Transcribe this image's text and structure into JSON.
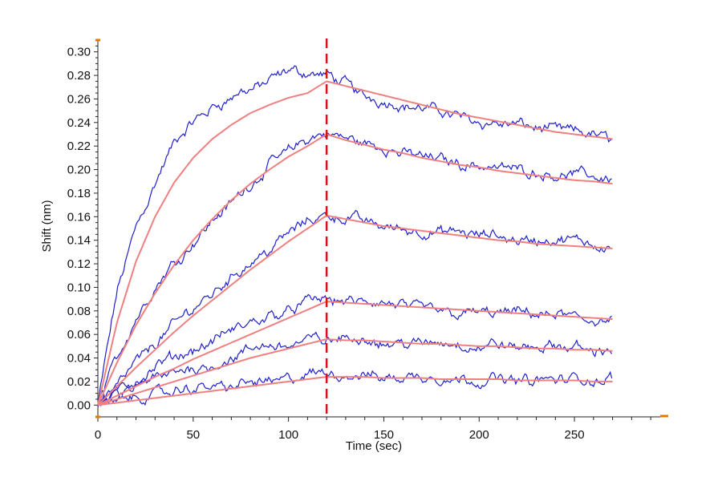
{
  "chart_data": {
    "type": "line",
    "xlabel": "Time (sec)",
    "ylabel": "Shift (nm)",
    "xlim": [
      0,
      295
    ],
    "ylim": [
      -0.01,
      0.31
    ],
    "x_ticks": [
      0,
      50,
      100,
      150,
      200,
      250
    ],
    "y_ticks": [
      0.0,
      0.02,
      0.04,
      0.06,
      0.08,
      0.1,
      0.12,
      0.14,
      0.16,
      0.18,
      0.2,
      0.22,
      0.24,
      0.26,
      0.28,
      0.3
    ],
    "grid": false,
    "legend": "none",
    "annotations": [
      {
        "type": "vertical-dashed-line",
        "x": 120,
        "color": "#dd1111"
      }
    ],
    "colors": {
      "measured": "#1f1fcf",
      "fit": "#f08080",
      "marker": "#dd1111",
      "axis-end-marks": "#e07b00"
    },
    "series": [
      {
        "x": [
          0,
          10,
          20,
          30,
          40,
          50,
          60,
          70,
          80,
          90,
          100,
          110,
          120,
          130,
          140,
          150,
          160,
          170,
          180,
          190,
          200,
          210,
          220,
          230,
          240,
          250,
          260,
          270
        ],
        "measured": [
          0.0,
          0.095,
          0.152,
          0.19,
          0.222,
          0.238,
          0.252,
          0.262,
          0.268,
          0.275,
          0.281,
          0.282,
          0.28,
          0.272,
          0.262,
          0.26,
          0.256,
          0.252,
          0.249,
          0.246,
          0.243,
          0.24,
          0.238,
          0.236,
          0.233,
          0.231,
          0.229,
          0.226
        ],
        "fit": [
          0.0,
          0.07,
          0.122,
          0.16,
          0.189,
          0.21,
          0.226,
          0.238,
          0.248,
          0.255,
          0.261,
          0.265,
          0.275,
          0.271,
          0.267,
          0.263,
          0.259,
          0.255,
          0.251,
          0.247,
          0.244,
          0.241,
          0.238,
          0.235,
          0.232,
          0.23,
          0.228,
          0.226
        ]
      },
      {
        "x": [
          0,
          10,
          20,
          30,
          40,
          50,
          60,
          70,
          80,
          90,
          100,
          110,
          120,
          130,
          140,
          150,
          160,
          170,
          180,
          190,
          200,
          210,
          220,
          230,
          240,
          250,
          260,
          270
        ],
        "measured": [
          0.0,
          0.04,
          0.075,
          0.1,
          0.122,
          0.14,
          0.158,
          0.172,
          0.188,
          0.204,
          0.216,
          0.225,
          0.23,
          0.226,
          0.222,
          0.218,
          0.214,
          0.212,
          0.209,
          0.206,
          0.204,
          0.203,
          0.201,
          0.199,
          0.197,
          0.196,
          0.194,
          0.193
        ],
        "fit": [
          0.0,
          0.036,
          0.068,
          0.095,
          0.119,
          0.14,
          0.158,
          0.174,
          0.188,
          0.2,
          0.211,
          0.22,
          0.23,
          0.225,
          0.221,
          0.217,
          0.214,
          0.21,
          0.207,
          0.204,
          0.202,
          0.199,
          0.197,
          0.195,
          0.193,
          0.191,
          0.19,
          0.188
        ]
      },
      {
        "x": [
          0,
          10,
          20,
          30,
          40,
          50,
          60,
          70,
          80,
          90,
          100,
          110,
          120,
          130,
          140,
          150,
          160,
          170,
          180,
          190,
          200,
          210,
          220,
          230,
          240,
          250,
          260,
          270
        ],
        "measured": [
          0.0,
          0.018,
          0.036,
          0.052,
          0.068,
          0.082,
          0.096,
          0.11,
          0.122,
          0.134,
          0.146,
          0.156,
          0.162,
          0.16,
          0.156,
          0.152,
          0.15,
          0.148,
          0.146,
          0.145,
          0.143,
          0.142,
          0.141,
          0.14,
          0.139,
          0.138,
          0.137,
          0.138
        ],
        "fit": [
          0.0,
          0.016,
          0.032,
          0.047,
          0.062,
          0.076,
          0.089,
          0.102,
          0.115,
          0.127,
          0.139,
          0.15,
          0.161,
          0.158,
          0.155,
          0.152,
          0.15,
          0.148,
          0.146,
          0.144,
          0.142,
          0.14,
          0.139,
          0.137,
          0.136,
          0.135,
          0.134,
          0.133
        ]
      },
      {
        "x": [
          0,
          10,
          20,
          30,
          40,
          50,
          60,
          70,
          80,
          90,
          100,
          110,
          120,
          130,
          140,
          150,
          160,
          170,
          180,
          190,
          200,
          210,
          220,
          230,
          240,
          250,
          260,
          270
        ],
        "measured": [
          0.0,
          0.01,
          0.02,
          0.03,
          0.038,
          0.046,
          0.054,
          0.062,
          0.068,
          0.076,
          0.082,
          0.088,
          0.09,
          0.088,
          0.086,
          0.084,
          0.082,
          0.081,
          0.08,
          0.08,
          0.079,
          0.078,
          0.077,
          0.076,
          0.075,
          0.074,
          0.073,
          0.072
        ],
        "fit": [
          0.0,
          0.008,
          0.016,
          0.024,
          0.031,
          0.039,
          0.046,
          0.053,
          0.06,
          0.067,
          0.074,
          0.081,
          0.088,
          0.087,
          0.086,
          0.085,
          0.084,
          0.083,
          0.082,
          0.081,
          0.08,
          0.079,
          0.078,
          0.077,
          0.076,
          0.075,
          0.074,
          0.073
        ]
      },
      {
        "x": [
          0,
          10,
          20,
          30,
          40,
          50,
          60,
          70,
          80,
          90,
          100,
          110,
          120,
          130,
          140,
          150,
          160,
          170,
          180,
          190,
          200,
          210,
          220,
          230,
          240,
          250,
          260,
          270
        ],
        "measured": [
          0.0,
          0.007,
          0.014,
          0.02,
          0.026,
          0.031,
          0.036,
          0.041,
          0.045,
          0.049,
          0.052,
          0.055,
          0.056,
          0.056,
          0.055,
          0.054,
          0.053,
          0.052,
          0.052,
          0.051,
          0.05,
          0.05,
          0.049,
          0.049,
          0.048,
          0.048,
          0.047,
          0.047
        ],
        "fit": [
          0.0,
          0.005,
          0.01,
          0.015,
          0.02,
          0.025,
          0.03,
          0.035,
          0.04,
          0.044,
          0.048,
          0.052,
          0.056,
          0.055,
          0.055,
          0.054,
          0.053,
          0.052,
          0.052,
          0.051,
          0.05,
          0.05,
          0.049,
          0.048,
          0.048,
          0.047,
          0.047,
          0.046
        ]
      },
      {
        "x": [
          0,
          10,
          20,
          30,
          40,
          50,
          60,
          70,
          80,
          90,
          100,
          110,
          120,
          130,
          140,
          150,
          160,
          170,
          180,
          190,
          200,
          210,
          220,
          230,
          240,
          250,
          260,
          270
        ],
        "measured": [
          0.0,
          0.003,
          0.006,
          0.009,
          0.011,
          0.013,
          0.015,
          0.017,
          0.019,
          0.021,
          0.022,
          0.024,
          0.025,
          0.025,
          0.025,
          0.024,
          0.024,
          0.024,
          0.023,
          0.023,
          0.023,
          0.022,
          0.022,
          0.022,
          0.021,
          0.021,
          0.021,
          0.021
        ],
        "fit": [
          0.0,
          0.002,
          0.004,
          0.006,
          0.008,
          0.01,
          0.012,
          0.014,
          0.016,
          0.018,
          0.02,
          0.022,
          0.024,
          0.024,
          0.024,
          0.023,
          0.023,
          0.023,
          0.022,
          0.022,
          0.022,
          0.022,
          0.021,
          0.021,
          0.021,
          0.021,
          0.02,
          0.02
        ]
      }
    ]
  }
}
